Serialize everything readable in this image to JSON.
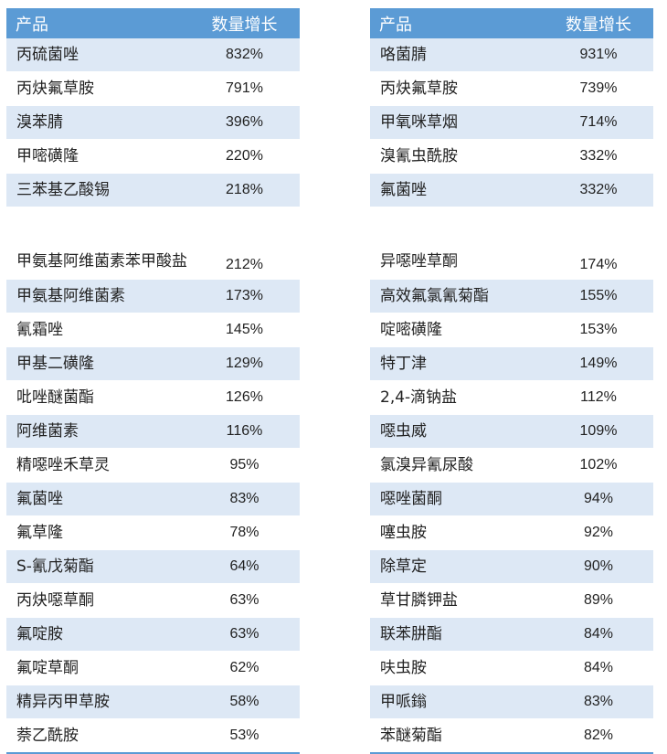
{
  "left_table": {
    "headers": {
      "product": "产品",
      "growth": "数量增长"
    },
    "rows": [
      {
        "name": "丙硫菌唑",
        "growth": "832%"
      },
      {
        "name": "丙炔氟草胺",
        "growth": "791%"
      },
      {
        "name": "溴苯腈",
        "growth": "396%"
      },
      {
        "name": "甲嘧磺隆",
        "growth": "220%"
      },
      {
        "name": "三苯基乙酸锡",
        "growth": "218%"
      },
      {
        "name": "甲氨基阿维菌素苯甲酸盐",
        "growth": "212%"
      },
      {
        "name": "甲氨基阿维菌素",
        "growth": "173%"
      },
      {
        "name": "氰霜唑",
        "growth": "145%"
      },
      {
        "name": "甲基二磺隆",
        "growth": "129%"
      },
      {
        "name": "吡唑醚菌酯",
        "growth": "126%"
      },
      {
        "name": "阿维菌素",
        "growth": "116%"
      },
      {
        "name": "精噁唑禾草灵",
        "growth": "95%"
      },
      {
        "name": "氟菌唑",
        "growth": "83%"
      },
      {
        "name": "氟草隆",
        "growth": "78%"
      },
      {
        "name": "S-氰戊菊酯",
        "growth": "64%"
      },
      {
        "name": "丙炔噁草酮",
        "growth": "63%"
      },
      {
        "name": "氟啶胺",
        "growth": "63%"
      },
      {
        "name": "氟啶草酮",
        "growth": "62%"
      },
      {
        "name": "精异丙甲草胺",
        "growth": "58%"
      },
      {
        "name": "萘乙酰胺",
        "growth": "53%"
      }
    ]
  },
  "right_table": {
    "headers": {
      "product": "产品",
      "growth": "数量增长"
    },
    "rows": [
      {
        "name": "咯菌腈",
        "growth": "931%"
      },
      {
        "name": "丙炔氟草胺",
        "growth": "739%"
      },
      {
        "name": "甲氧咪草烟",
        "growth": "714%"
      },
      {
        "name": "溴氰虫酰胺",
        "growth": "332%"
      },
      {
        "name": "氟菌唑",
        "growth": "332%"
      },
      {
        "name": "异噁唑草酮",
        "growth": "174%"
      },
      {
        "name": "高效氟氯氰菊酯",
        "growth": "155%"
      },
      {
        "name": "啶嘧磺隆",
        "growth": "153%"
      },
      {
        "name": "特丁津",
        "growth": "149%"
      },
      {
        "name": "2,4-滴钠盐",
        "growth": "112%"
      },
      {
        "name": "噁虫威",
        "growth": "109%"
      },
      {
        "name": "氯溴异氰尿酸",
        "growth": "102%"
      },
      {
        "name": "噁唑菌酮",
        "growth": "94%"
      },
      {
        "name": "噻虫胺",
        "growth": "92%"
      },
      {
        "name": "除草定",
        "growth": "90%"
      },
      {
        "name": "草甘膦钾盐",
        "growth": "89%"
      },
      {
        "name": "联苯肼酯",
        "growth": "84%"
      },
      {
        "name": "呋虫胺",
        "growth": "84%"
      },
      {
        "name": "甲哌鎓",
        "growth": "83%"
      },
      {
        "name": "苯醚菊酯",
        "growth": "82%"
      }
    ]
  }
}
